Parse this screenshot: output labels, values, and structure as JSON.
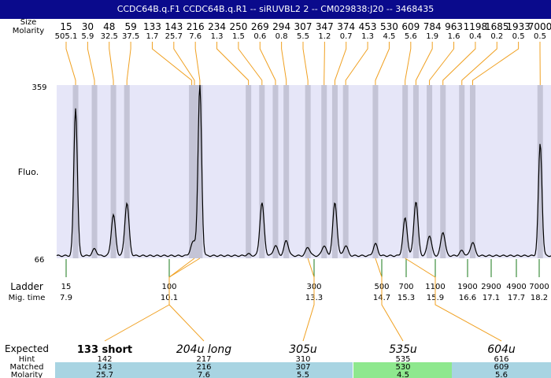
{
  "title": "CCDC64B.q.F1  CCDC64B.q.R1 -- siRUVBL2 2 -- CM029838:J20 -- 3468435",
  "labels": {
    "size_top": "Size",
    "molarity_top": "Molarity",
    "fluo": "Fluo.",
    "ladder": "Ladder",
    "migtime": "Mig. time",
    "expected": "Expected",
    "hint": "Hint",
    "matched": "Matched",
    "molarity_bottom": "Molarity"
  },
  "colors": {
    "titlebar": "#0a0a8c",
    "plot_bg": "#e6e6f8",
    "peak_band": "#c4c4d6",
    "trace": "#000000",
    "orange": "#f0a020",
    "ladder_tick": "#1a7a1a",
    "row_blue": "#a8d4e2",
    "row_green": "#8ee88e"
  },
  "chart_data": {
    "type": "line",
    "ylabel": "Fluo.",
    "ylim": [
      66,
      359
    ],
    "ytick_labels": [
      "359",
      "66"
    ],
    "peaks": [
      {
        "size": "15",
        "molarity": "505.1",
        "t": 7.9,
        "h": 0.87
      },
      {
        "size": "30",
        "molarity": "5.9",
        "t": 8.6,
        "h": 0.04
      },
      {
        "size": "48",
        "molarity": "32.5",
        "t": 9.3,
        "h": 0.24
      },
      {
        "size": "59",
        "molarity": "37.5",
        "t": 9.8,
        "h": 0.31
      },
      {
        "size": "133",
        "molarity": "1.7",
        "t": 12.2,
        "h": 0.04
      },
      {
        "size": "143",
        "molarity": "25.7",
        "t": 12.3,
        "h": 0.06
      },
      {
        "size": "216",
        "molarity": "7.6",
        "t": 12.5,
        "h": 1.0
      },
      {
        "size": "234",
        "molarity": "1.3",
        "t": 14.3,
        "h": 0.01
      },
      {
        "size": "250",
        "molarity": "1.5",
        "t": 14.8,
        "h": 0.31
      },
      {
        "size": "269",
        "molarity": "0.6",
        "t": 15.3,
        "h": 0.06
      },
      {
        "size": "294",
        "molarity": "0.8",
        "t": 15.7,
        "h": 0.09
      },
      {
        "size": "307",
        "molarity": "5.5",
        "t": 16.5,
        "h": 0.05
      },
      {
        "size": "347",
        "molarity": "1.2",
        "t": 17.1,
        "h": 0.06
      },
      {
        "size": "374",
        "molarity": "0.7",
        "t": 17.5,
        "h": 0.31
      },
      {
        "size": "453",
        "molarity": "1.3",
        "t": 17.9,
        "h": 0.06
      },
      {
        "size": "530",
        "molarity": "4.5",
        "t": 19.0,
        "h": 0.07
      },
      {
        "size": "609",
        "molarity": "5.6",
        "t": 20.1,
        "h": 0.22
      },
      {
        "size": "784",
        "molarity": "1.9",
        "t": 20.5,
        "h": 0.32
      },
      {
        "size": "963",
        "molarity": "1.6",
        "t": 21.0,
        "h": 0.12
      },
      {
        "size": "1198",
        "molarity": "0.4",
        "t": 21.5,
        "h": 0.14
      },
      {
        "size": "1685",
        "molarity": "0.2",
        "t": 22.2,
        "h": 0.03
      },
      {
        "size": "1933",
        "molarity": "0.5",
        "t": 22.6,
        "h": 0.08
      },
      {
        "size": "7000",
        "molarity": "0.5",
        "t": 25.1,
        "h": 0.66
      }
    ],
    "ladder": [
      {
        "size": "15",
        "migtime": "7.9"
      },
      {
        "size": "100",
        "migtime": "10.1"
      },
      {
        "size": "300",
        "migtime": "13.3"
      },
      {
        "size": "500",
        "migtime": "14.7"
      },
      {
        "size": "700",
        "migtime": "15.3"
      },
      {
        "size": "1100",
        "migtime": "15.9"
      },
      {
        "size": "1900",
        "migtime": "16.6"
      },
      {
        "size": "2900",
        "migtime": "17.1"
      },
      {
        "size": "4900",
        "migtime": "17.7"
      },
      {
        "size": "7000",
        "migtime": "18.2"
      }
    ],
    "expected": [
      {
        "label": "133 short",
        "hint": "142",
        "matched": "143",
        "molarity": "25.7",
        "peak": "143",
        "ladder": "100",
        "bold": true,
        "row_color": "#a8d4e2"
      },
      {
        "label": "204u long",
        "hint": "217",
        "matched": "216",
        "molarity": "7.6",
        "peak": "216",
        "ladder": "100",
        "bold": false,
        "row_color": "#a8d4e2"
      },
      {
        "label": "305u",
        "hint": "310",
        "matched": "307",
        "molarity": "5.5",
        "peak": "307",
        "ladder": "300",
        "bold": false,
        "row_color": "#a8d4e2"
      },
      {
        "label": "535u",
        "hint": "535",
        "matched": "530",
        "molarity": "4.5",
        "peak": "530",
        "ladder": "500",
        "bold": false,
        "row_color": "#8ee88e"
      },
      {
        "label": "604u",
        "hint": "616",
        "matched": "609",
        "molarity": "5.6",
        "peak": "609",
        "ladder": "1100",
        "bold": false,
        "row_color": "#a8d4e2"
      }
    ]
  }
}
